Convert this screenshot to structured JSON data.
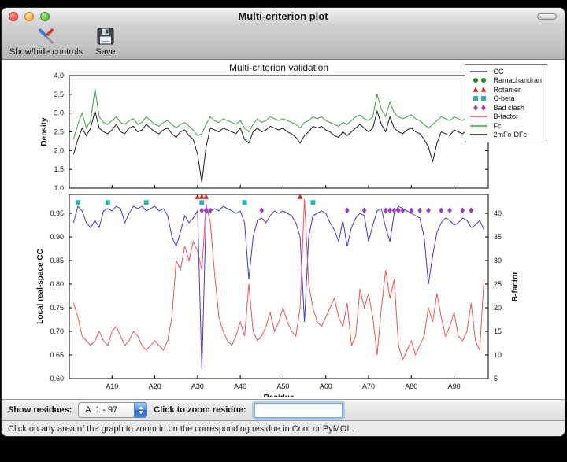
{
  "window": {
    "title": "Multi-criterion plot"
  },
  "toolbar": {
    "items": [
      {
        "label": "Show/hide controls"
      },
      {
        "label": "Save"
      }
    ]
  },
  "controls": {
    "show_residues_label": "Show residues:",
    "chain_range_value": "A  1 - 97",
    "zoom_label": "Click to zoom residue:",
    "zoom_value": ""
  },
  "status_bar": {
    "text": "Click on any area of the graph to zoom in on the corresponding residue in Coot or PyMOL."
  },
  "chart_data": {
    "type": "line",
    "title": "Multi-criterion validation",
    "xlabel": "Residue",
    "xlim": [
      0,
      98
    ],
    "x_ticks": [
      {
        "label": "A10",
        "residue": 10
      },
      {
        "label": "A20",
        "residue": 20
      },
      {
        "label": "A30",
        "residue": 30
      },
      {
        "label": "A40",
        "residue": 40
      },
      {
        "label": "A50",
        "residue": 50
      },
      {
        "label": "A60",
        "residue": 60
      },
      {
        "label": "A70",
        "residue": 70
      },
      {
        "label": "A80",
        "residue": 80
      },
      {
        "label": "A90",
        "residue": 90
      }
    ],
    "top_plot": {
      "ylabel": "Density",
      "ylim": [
        1.0,
        4.0
      ],
      "yticks": [
        1.0,
        1.5,
        2.0,
        2.5,
        3.0,
        3.5,
        4.0
      ],
      "series": [
        {
          "name": "Fc",
          "color": "#3ba23b",
          "values": [
            2.3,
            2.7,
            3.0,
            2.6,
            2.8,
            3.65,
            2.9,
            2.75,
            2.7,
            2.8,
            2.9,
            2.75,
            2.7,
            2.8,
            2.85,
            2.7,
            2.75,
            2.9,
            2.8,
            2.7,
            2.65,
            2.75,
            2.8,
            2.7,
            2.6,
            2.7,
            2.75,
            2.65,
            2.55,
            2.4,
            2.45,
            2.7,
            2.9,
            2.8,
            2.75,
            2.85,
            2.8,
            2.75,
            2.7,
            2.8,
            2.6,
            2.5,
            2.7,
            2.85,
            2.75,
            2.8,
            2.9,
            2.85,
            2.8,
            2.85,
            2.8,
            2.75,
            2.7,
            2.6,
            2.75,
            2.8,
            2.9,
            2.85,
            2.9,
            2.8,
            2.75,
            2.7,
            2.65,
            2.75,
            2.7,
            2.8,
            2.9,
            2.95,
            2.85,
            2.8,
            2.9,
            3.5,
            3.1,
            2.9,
            3.3,
            3.0,
            2.9,
            2.85,
            2.9,
            2.95,
            2.85,
            2.8,
            2.7,
            2.6,
            2.7,
            2.8,
            2.9,
            2.85,
            2.8,
            2.9,
            2.85,
            2.8,
            2.9,
            3.0,
            2.9,
            3.5,
            3.45
          ]
        },
        {
          "name": "2mFo-DFc",
          "color": "#1a1a1a",
          "values": [
            1.9,
            2.3,
            2.6,
            2.4,
            2.6,
            3.05,
            2.6,
            2.5,
            2.45,
            2.55,
            2.7,
            2.5,
            2.45,
            2.6,
            2.65,
            2.5,
            2.55,
            2.7,
            2.6,
            2.5,
            2.45,
            2.55,
            2.6,
            2.45,
            2.35,
            2.5,
            2.55,
            2.4,
            2.3,
            1.9,
            1.15,
            2.1,
            2.6,
            2.55,
            2.5,
            2.6,
            2.55,
            2.5,
            2.45,
            2.6,
            2.3,
            2.2,
            2.5,
            2.6,
            2.5,
            2.55,
            2.65,
            2.6,
            2.55,
            2.6,
            2.5,
            2.45,
            2.35,
            2.2,
            2.4,
            2.5,
            2.65,
            2.6,
            2.65,
            2.55,
            2.5,
            2.4,
            2.35,
            2.5,
            2.4,
            2.5,
            2.6,
            2.7,
            2.6,
            2.5,
            2.6,
            3.05,
            2.7,
            2.5,
            2.9,
            2.6,
            2.5,
            2.45,
            2.55,
            2.6,
            2.5,
            2.45,
            2.3,
            2.1,
            1.7,
            2.2,
            2.5,
            2.45,
            2.4,
            2.55,
            2.5,
            2.45,
            2.55,
            2.7,
            2.5,
            2.95,
            2.9
          ]
        }
      ]
    },
    "bottom_plot": {
      "ylabel_left": "Local real-space CC",
      "ylim_left": [
        0.6,
        0.99
      ],
      "yticks_left": [
        0.6,
        0.65,
        0.7,
        0.75,
        0.8,
        0.85,
        0.9,
        0.95
      ],
      "ylabel_right": "B-factor",
      "ylim_right": [
        5,
        44
      ],
      "yticks_right": [
        5,
        10,
        15,
        20,
        25,
        30,
        35,
        40
      ],
      "series": [
        {
          "name": "CC",
          "axis": "left",
          "color": "#3b3bd6",
          "values": [
            0.93,
            0.965,
            0.955,
            0.93,
            0.92,
            0.935,
            0.92,
            0.955,
            0.96,
            0.955,
            0.965,
            0.96,
            0.93,
            0.95,
            0.965,
            0.96,
            0.965,
            0.955,
            0.96,
            0.965,
            0.955,
            0.96,
            0.945,
            0.9,
            0.88,
            0.91,
            0.945,
            0.93,
            0.94,
            0.955,
            0.62,
            0.95,
            0.955,
            0.96,
            0.955,
            0.965,
            0.96,
            0.955,
            0.95,
            0.955,
            0.93,
            0.81,
            0.9,
            0.935,
            0.94,
            0.93,
            0.945,
            0.955,
            0.95,
            0.955,
            0.95,
            0.945,
            0.93,
            0.9,
            0.72,
            0.9,
            0.945,
            0.95,
            0.955,
            0.95,
            0.93,
            0.915,
            0.89,
            0.935,
            0.88,
            0.92,
            0.94,
            0.95,
            0.945,
            0.89,
            0.925,
            0.955,
            0.96,
            0.92,
            0.89,
            0.95,
            0.965,
            0.96,
            0.955,
            0.95,
            0.945,
            0.94,
            0.9,
            0.8,
            0.86,
            0.91,
            0.93,
            0.94,
            0.935,
            0.925,
            0.93,
            0.94,
            0.935,
            0.92,
            0.925,
            0.935,
            0.915
          ]
        },
        {
          "name": "B-factor",
          "axis": "right",
          "color": "#f25252",
          "values": [
            21,
            18,
            14,
            13,
            12,
            13,
            15,
            13,
            12,
            15,
            16,
            14,
            12,
            13,
            15,
            14,
            12,
            11,
            12,
            13,
            12,
            11,
            13,
            18,
            30,
            28,
            33,
            30,
            34,
            32,
            28,
            42,
            38,
            27,
            18,
            15,
            13,
            12,
            14,
            17,
            14,
            25,
            15,
            13,
            14,
            16,
            19,
            15,
            17,
            20,
            17,
            15,
            14,
            20,
            43,
            25,
            20,
            17,
            16,
            18,
            20,
            22,
            18,
            16,
            21,
            12,
            14,
            24,
            20,
            23,
            18,
            10,
            20,
            28,
            22,
            26,
            12,
            9,
            11,
            13,
            10,
            12,
            14,
            20,
            17,
            23,
            18,
            14,
            16,
            19,
            14,
            13,
            15,
            21,
            13,
            11,
            26
          ]
        }
      ],
      "markers": [
        {
          "name": "Ramachandran",
          "shape": "circle",
          "color": "#1e8c1e",
          "y": 0.985,
          "residues": []
        },
        {
          "name": "Rotamer",
          "shape": "triangle",
          "color": "#cc2a1e",
          "y": 0.985,
          "residues": [
            30,
            31,
            32,
            54
          ]
        },
        {
          "name": "C-beta",
          "shape": "square",
          "color": "#2ab5ad",
          "y": 0.973,
          "residues": [
            2,
            9,
            18,
            31,
            41,
            57
          ]
        },
        {
          "name": "Bad clash",
          "shape": "diamond",
          "color": "#9b3fbf",
          "y": 0.956,
          "residues": [
            31,
            32,
            33,
            45,
            65,
            69,
            74,
            75,
            76,
            77,
            78,
            80,
            82,
            84,
            87,
            89,
            92,
            94
          ]
        }
      ]
    },
    "legend": [
      {
        "label": "CC",
        "type": "line",
        "color": "#3b3bd6"
      },
      {
        "label": "Ramachandran",
        "type": "circle",
        "color": "#1e8c1e"
      },
      {
        "label": "Rotamer",
        "type": "triangle",
        "color": "#cc2a1e"
      },
      {
        "label": "C-beta",
        "type": "square",
        "color": "#2ab5ad"
      },
      {
        "label": "Bad clash",
        "type": "diamond",
        "color": "#9b3fbf"
      },
      {
        "label": "B-factor",
        "type": "line",
        "color": "#f25252"
      },
      {
        "label": "Fc",
        "type": "line",
        "color": "#3ba23b"
      },
      {
        "label": "2mFo-DFc",
        "type": "line",
        "color": "#1a1a1a"
      }
    ]
  }
}
